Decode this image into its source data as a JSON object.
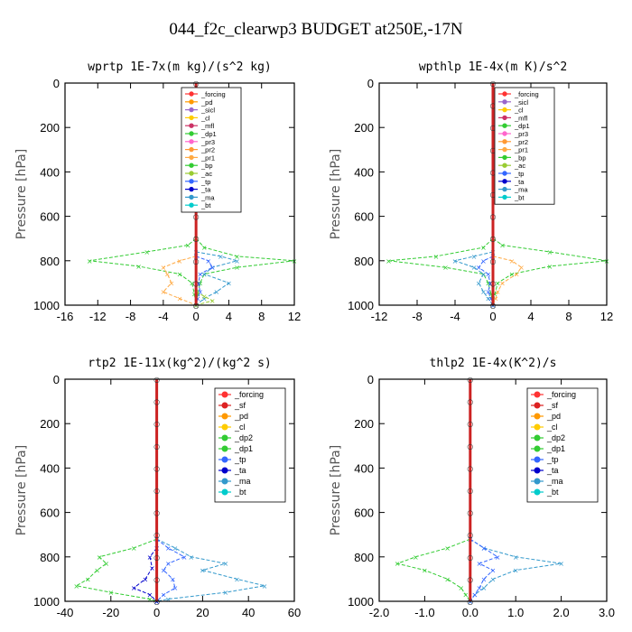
{
  "figure_title": "044_f2c_clearwp3  BUDGET at250E,-17N",
  "colors": {
    "_forcing": "#ff3333",
    "_sf": "#dd2222",
    "_pd": "#ff9900",
    "_sicl": "#9966cc",
    "_cl": "#ffcc00",
    "_mfl": "#cc3366",
    "_dp1": "#33cc33",
    "_dp2": "#33cc33",
    "_pr3": "#ff66cc",
    "_pr2": "#ff9933",
    "_pr1": "#ffaa44",
    "_bp": "#33cc33",
    "_ac": "#99cc33",
    "_tp": "#3366ff",
    "_ta": "#0000cc",
    "_ma": "#3399cc",
    "_bt": "#00cccc"
  },
  "chart_data": [
    {
      "type": "line",
      "title": "wprtp  1E-7x(m kg)/(s^2 kg)",
      "ylabel": "Pressure [hPa]",
      "xlim": [
        -16,
        12
      ],
      "ylim": [
        1000,
        0
      ],
      "xticks": [
        "-16",
        "-12",
        "-8",
        "-4",
        "0",
        "4",
        "8",
        "12"
      ],
      "xtick_values": [
        -16,
        -12,
        -8,
        -4,
        0,
        4,
        8,
        12
      ],
      "yticks": [
        "0",
        "200",
        "400",
        "600",
        "800",
        "1000"
      ],
      "ytick_values": [
        0,
        200,
        400,
        600,
        800,
        1000
      ],
      "legend": "inside-top",
      "legend_entries": [
        "_forcing",
        "_pd",
        "_sicl",
        "_cl",
        "_mfl",
        "_dp1",
        "_pr3",
        "_pr2",
        "_pr1",
        "_bp",
        "_ac",
        "_tp",
        "_ta",
        "_ma",
        "_bt"
      ],
      "series": [
        {
          "name": "_dp1",
          "y": [
            700,
            740,
            780,
            800,
            830,
            860,
            900,
            950,
            1000
          ],
          "x": [
            0,
            1,
            5,
            12,
            5,
            1,
            0.5,
            0.2,
            0
          ]
        },
        {
          "name": "_bp",
          "y": [
            700,
            730,
            760,
            800,
            825,
            860,
            900,
            950,
            1000
          ],
          "x": [
            0,
            -1,
            -6,
            -13,
            -7,
            -2,
            -0.5,
            -0.2,
            0
          ]
        },
        {
          "name": "_pr1",
          "y": [
            780,
            800,
            830,
            860,
            900,
            940,
            970,
            1000
          ],
          "x": [
            0,
            -2,
            -4,
            -3.5,
            -3,
            -4,
            -2,
            0
          ]
        },
        {
          "name": "_ma",
          "y": [
            760,
            780,
            800,
            830,
            860,
            900,
            940,
            970,
            1000
          ],
          "x": [
            0,
            3,
            5,
            2,
            1,
            4,
            2.5,
            1,
            0
          ]
        },
        {
          "name": "_tp",
          "y": [
            780,
            800,
            830,
            860,
            900,
            940,
            970,
            1000
          ],
          "x": [
            0,
            1.5,
            2,
            0.5,
            0.3,
            0.5,
            0.2,
            0
          ]
        },
        {
          "name": "_ac",
          "y": [
            940,
            960,
            980,
            1000
          ],
          "x": [
            0,
            1,
            2,
            0
          ]
        },
        {
          "name": "_forcing",
          "y": [
            0,
            100,
            200,
            300,
            400,
            500,
            600,
            700,
            800,
            900,
            1000
          ],
          "x": [
            0,
            0,
            0,
            0,
            0,
            0,
            0,
            0,
            0,
            0,
            0
          ]
        }
      ]
    },
    {
      "type": "line",
      "title": "wpthlp  1E-4x(m K)/s^2",
      "ylabel": "Pressure [hPa]",
      "xlim": [
        -12,
        12
      ],
      "ylim": [
        1000,
        0
      ],
      "xticks": [
        "-12",
        "-8",
        "-4",
        "0",
        "4",
        "8",
        "12"
      ],
      "xtick_values": [
        -12,
        -8,
        -4,
        0,
        4,
        8,
        12
      ],
      "yticks": [
        "0",
        "200",
        "400",
        "600",
        "800",
        "1000"
      ],
      "ytick_values": [
        0,
        200,
        400,
        600,
        800,
        1000
      ],
      "legend": "inside-top",
      "legend_entries": [
        "_forcing",
        "_sicl",
        "_cl",
        "_mfl",
        "_dp1",
        "_pr3",
        "_pr2",
        "_pr1",
        "_bp",
        "_ac",
        "_tp",
        "_ta",
        "_ma",
        "_bt"
      ],
      "series": [
        {
          "name": "_dp1",
          "y": [
            700,
            740,
            780,
            800,
            830,
            860,
            900,
            950,
            1000
          ],
          "x": [
            0,
            -1,
            -6,
            -11,
            -5,
            -1,
            -0.5,
            -0.2,
            0
          ]
        },
        {
          "name": "_bp",
          "y": [
            700,
            730,
            760,
            800,
            825,
            860,
            900,
            950,
            1000
          ],
          "x": [
            0,
            1,
            6,
            12,
            6,
            2,
            0.5,
            0.2,
            0
          ]
        },
        {
          "name": "_pr1",
          "y": [
            780,
            800,
            830,
            860,
            900,
            940,
            970,
            1000
          ],
          "x": [
            0,
            2,
            3,
            2.5,
            1,
            0.5,
            0.3,
            0
          ]
        },
        {
          "name": "_ma",
          "y": [
            760,
            780,
            800,
            830,
            860,
            900,
            940,
            970,
            1000
          ],
          "x": [
            0,
            -2,
            -4,
            -2,
            -1,
            -1.5,
            -1,
            -0.5,
            0
          ]
        },
        {
          "name": "_tp",
          "y": [
            780,
            800,
            830,
            860,
            900,
            940,
            970,
            1000
          ],
          "x": [
            0,
            -1,
            -1.5,
            -0.5,
            -0.3,
            -0.5,
            -0.2,
            0
          ]
        },
        {
          "name": "_forcing",
          "y": [
            0,
            100,
            200,
            300,
            400,
            500,
            600,
            700,
            800,
            900,
            1000
          ],
          "x": [
            0,
            0,
            0,
            0,
            0,
            0,
            0,
            0,
            0,
            0,
            0
          ]
        }
      ]
    },
    {
      "type": "line",
      "title": "rtp2  1E-11x(kg^2)/(kg^2 s)",
      "ylabel": "Pressure [hPa]",
      "xlim": [
        -40,
        60
      ],
      "ylim": [
        1000,
        0
      ],
      "xticks": [
        "-40",
        "-20",
        "0",
        "20",
        "40",
        "60"
      ],
      "xtick_values": [
        -40,
        -20,
        0,
        20,
        40,
        60
      ],
      "yticks": [
        "0",
        "200",
        "400",
        "600",
        "800",
        "1000"
      ],
      "ytick_values": [
        0,
        200,
        400,
        600,
        800,
        1000
      ],
      "legend": "inside-top-right",
      "legend_entries": [
        "_forcing",
        "_sf",
        "_pd",
        "_cl",
        "_dp2",
        "_dp1",
        "_tp",
        "_ta",
        "_ma",
        "_bt"
      ],
      "series": [
        {
          "name": "_dp1",
          "y": [
            720,
            760,
            800,
            830,
            860,
            900,
            930,
            960,
            990,
            1000
          ],
          "x": [
            0,
            -10,
            -25,
            -22,
            -26,
            -30,
            -35,
            -20,
            -3,
            0
          ]
        },
        {
          "name": "_ma",
          "y": [
            720,
            760,
            800,
            830,
            860,
            900,
            930,
            960,
            990,
            1000
          ],
          "x": [
            0,
            8,
            15,
            30,
            20,
            35,
            47,
            30,
            5,
            0
          ]
        },
        {
          "name": "_tp",
          "y": [
            720,
            760,
            800,
            830,
            860,
            900,
            940,
            970,
            1000
          ],
          "x": [
            0,
            5,
            12,
            5,
            3,
            7,
            8,
            3,
            0
          ]
        },
        {
          "name": "_ta",
          "y": [
            760,
            800,
            850,
            900,
            940,
            970,
            1000
          ],
          "x": [
            0,
            -3,
            -2,
            -5,
            -10,
            -3,
            0
          ]
        },
        {
          "name": "_forcing",
          "y": [
            0,
            100,
            200,
            300,
            400,
            500,
            600,
            700,
            800,
            900,
            1000
          ],
          "x": [
            0,
            0,
            0,
            0,
            0,
            0,
            0,
            0,
            0,
            0,
            0
          ]
        }
      ]
    },
    {
      "type": "line",
      "title": "thlp2  1E-4x(K^2)/s",
      "ylabel": "Pressure [hPa]",
      "xlim": [
        -2.0,
        3.0
      ],
      "ylim": [
        1000,
        0
      ],
      "xticks": [
        "-2.0",
        "-1.0",
        "0.0",
        "1.0",
        "2.0",
        "3.0"
      ],
      "xtick_values": [
        -2,
        -1,
        0,
        1,
        2,
        3
      ],
      "yticks": [
        "0",
        "200",
        "400",
        "600",
        "800",
        "1000"
      ],
      "ytick_values": [
        0,
        200,
        400,
        600,
        800,
        1000
      ],
      "legend": "inside-top-right",
      "legend_entries": [
        "_forcing",
        "_sf",
        "_pd",
        "_cl",
        "_dp2",
        "_dp1",
        "_tp",
        "_ta",
        "_ma",
        "_bt"
      ],
      "series": [
        {
          "name": "_dp1",
          "y": [
            720,
            760,
            800,
            830,
            860,
            900,
            940,
            970,
            1000
          ],
          "x": [
            0,
            -0.5,
            -1.2,
            -1.6,
            -1.0,
            -0.5,
            -0.2,
            -0.1,
            0
          ]
        },
        {
          "name": "_ma",
          "y": [
            720,
            760,
            800,
            830,
            860,
            900,
            940,
            970,
            1000
          ],
          "x": [
            0,
            0.3,
            1.0,
            2.0,
            1.0,
            0.5,
            0.3,
            0.1,
            0
          ]
        },
        {
          "name": "_tp",
          "y": [
            720,
            760,
            800,
            830,
            860,
            900,
            940,
            970,
            1000
          ],
          "x": [
            0,
            0.3,
            0.6,
            0.2,
            0.5,
            0.3,
            0.2,
            0.1,
            0
          ]
        },
        {
          "name": "_forcing",
          "y": [
            0,
            100,
            200,
            300,
            400,
            500,
            600,
            700,
            800,
            900,
            1000
          ],
          "x": [
            0,
            0,
            0,
            0,
            0,
            0,
            0,
            0,
            0,
            0,
            0
          ]
        }
      ]
    }
  ]
}
